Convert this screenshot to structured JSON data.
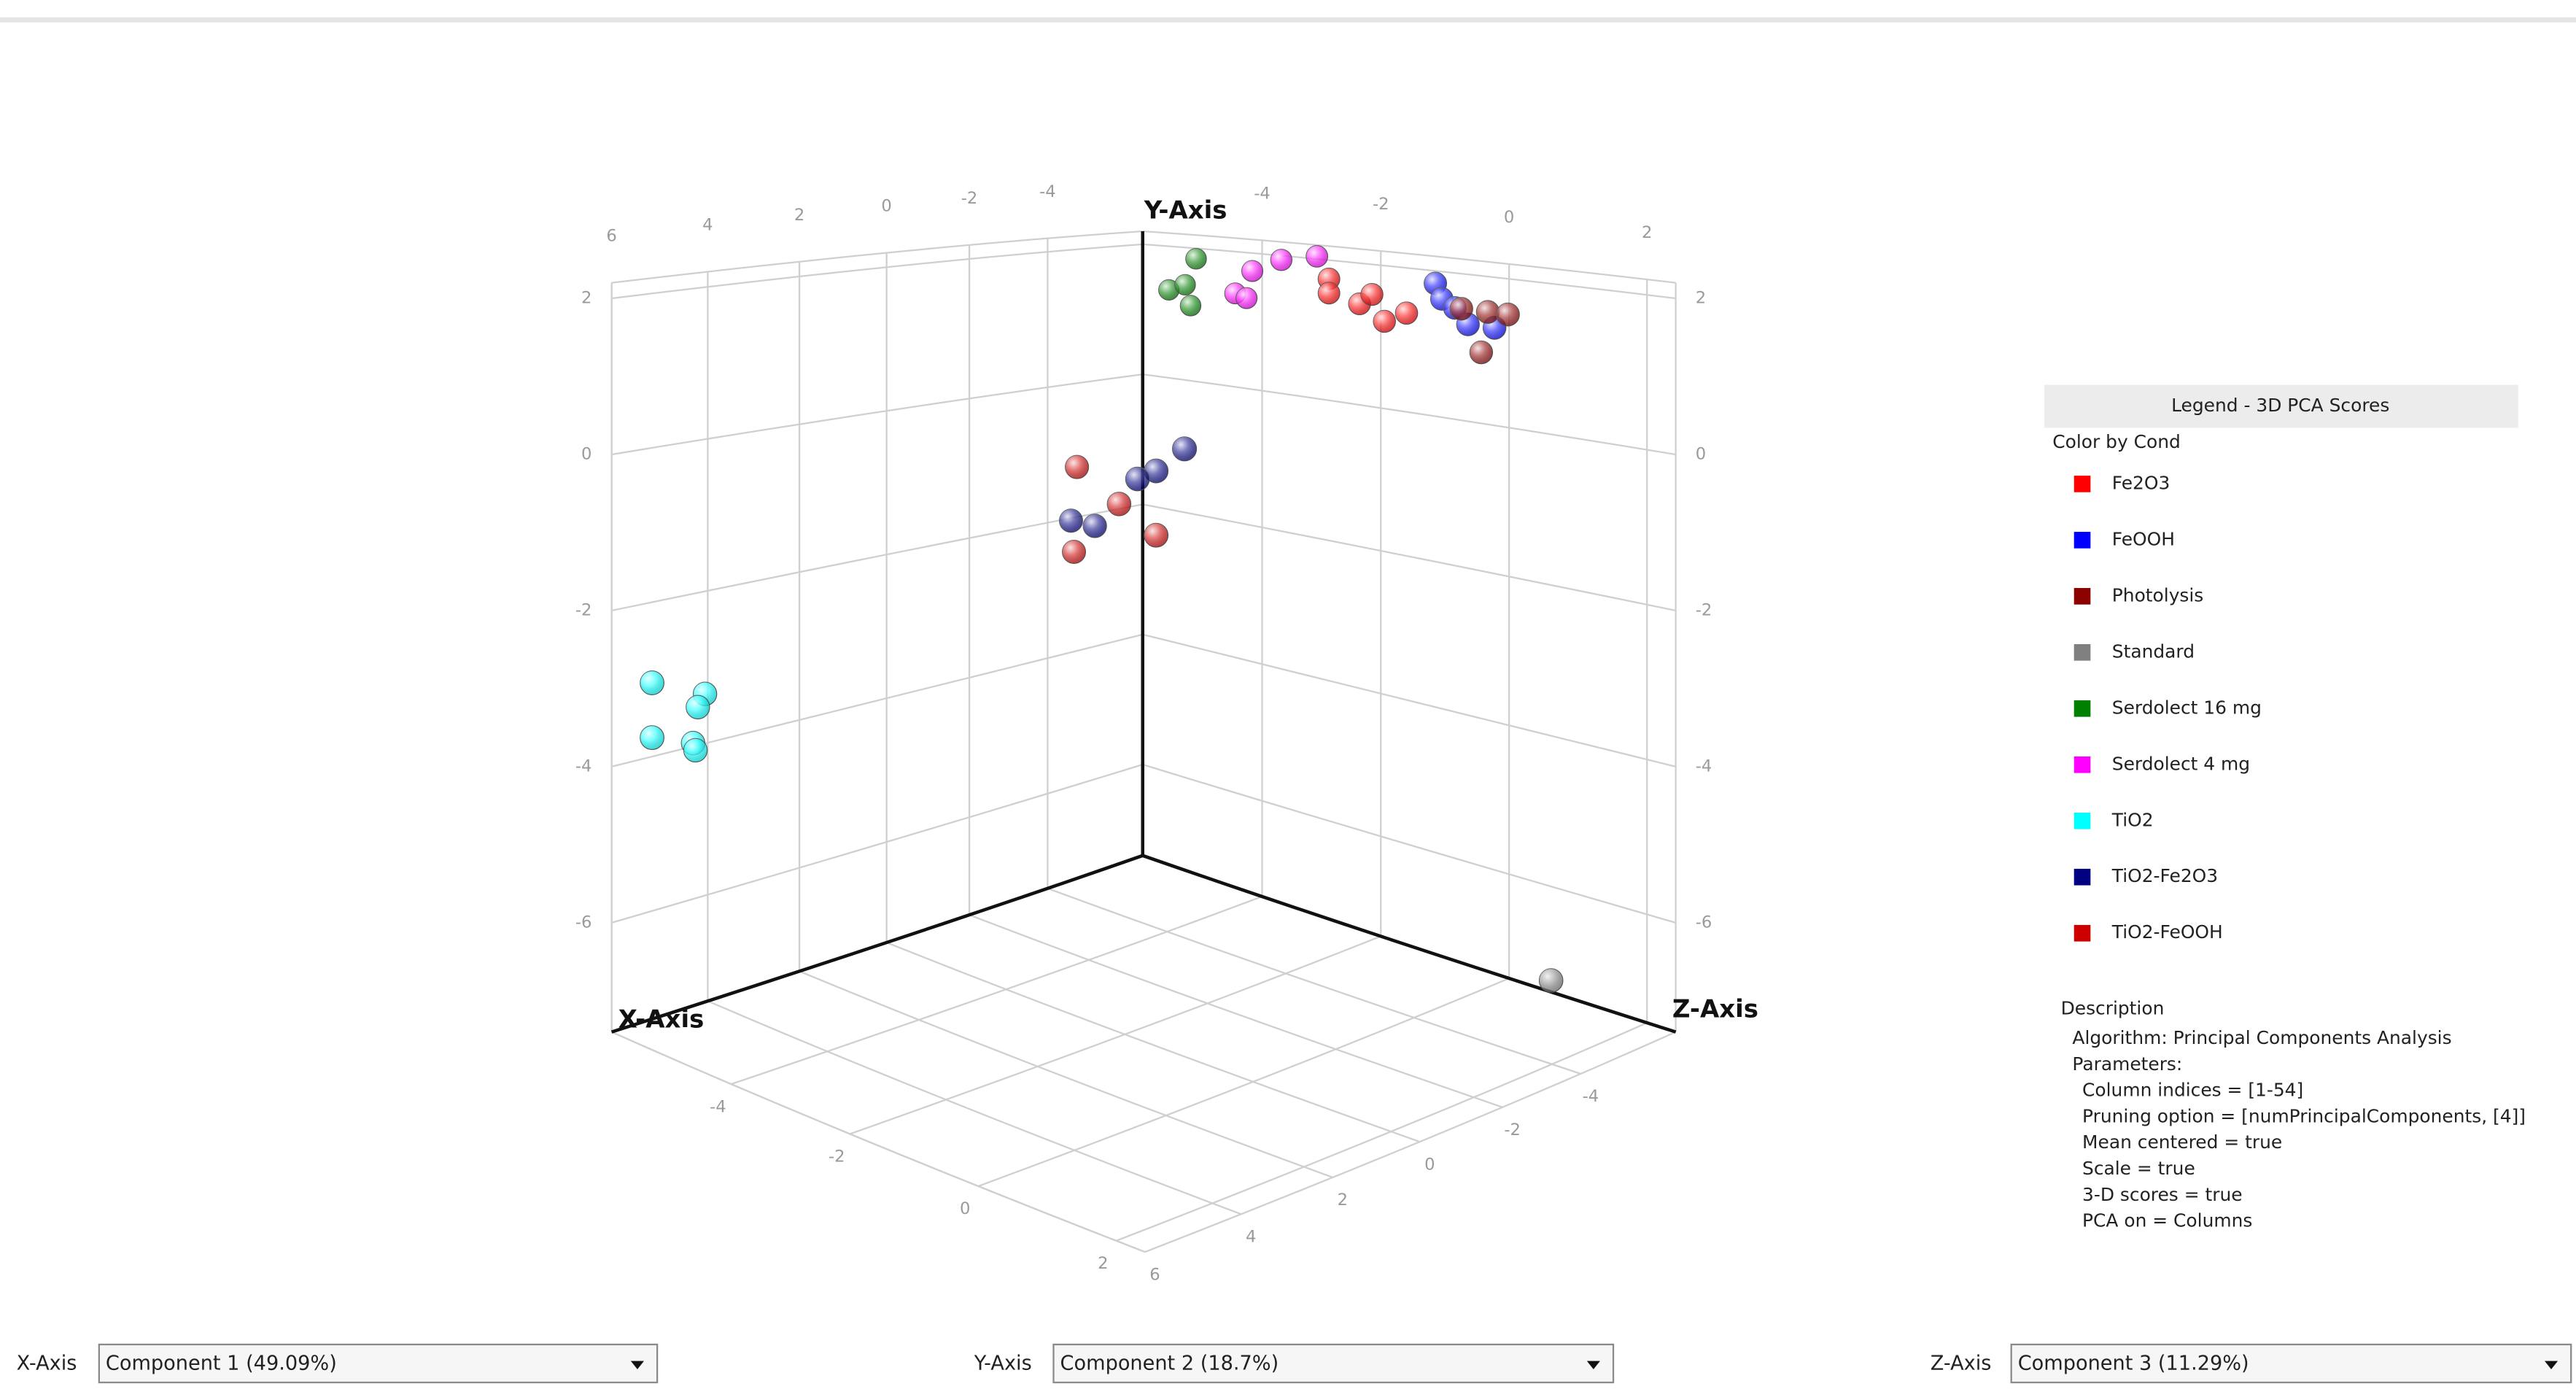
{
  "chart_data": {
    "type": "scatter3d",
    "x_axis_label": "X-Axis",
    "y_axis_label": "Y-Axis",
    "z_axis_label": "Z-Axis",
    "xlim": [
      -6.6,
      6
    ],
    "ylim": [
      -7.4,
      2.2
    ],
    "zlim": [
      -6.2,
      2.4
    ],
    "xticks": [
      -4,
      -2,
      0,
      2,
      4,
      6
    ],
    "yticks": [
      -6,
      -4,
      -2,
      0,
      2
    ],
    "zticks": [
      -4,
      -2,
      0,
      2
    ],
    "grid": true,
    "series": [
      {
        "name": "Fe2O3",
        "color": "#ff0000",
        "x": [
          -6.0,
          -6.0,
          -6.0,
          -6.0,
          -6.0,
          -6.0
        ],
        "y": [
          1.8,
          1.6,
          1.5,
          1.65,
          1.45,
          1.3
        ],
        "z": [
          -2.5,
          -2.5,
          -2.0,
          -1.8,
          -1.25,
          -1.6
        ]
      },
      {
        "name": "FeOOH",
        "color": "#0000ff",
        "x": [
          -6.0,
          -6.0,
          -6.0,
          -6.0,
          -6.0
        ],
        "y": [
          1.9,
          1.7,
          1.6,
          1.4,
          1.4
        ],
        "z": [
          -0.8,
          -0.7,
          -0.5,
          -0.3,
          0.1
        ]
      },
      {
        "name": "Photolysis",
        "color": "#8b0000",
        "x": [
          -6.0,
          -6.0,
          -6.0,
          -6.0
        ],
        "y": [
          1.6,
          1.6,
          1.6,
          1.05
        ],
        "z": [
          -0.4,
          0.0,
          0.3,
          -0.1
        ]
      },
      {
        "name": "Standard",
        "color": "#808080",
        "x": [
          -5.3
        ],
        "y": [
          -6.8
        ],
        "z": [
          1.3
        ]
      },
      {
        "name": "Serdolect 16 mg",
        "color": "#008000",
        "x": [
          -6.0,
          -6.0,
          -6.0,
          -6.0
        ],
        "y": [
          1.9,
          1.4,
          1.5,
          1.2
        ],
        "z": [
          -4.8,
          -5.3,
          -5.0,
          -4.9
        ]
      },
      {
        "name": "Serdolect 4 mg",
        "color": "#ff00ff",
        "x": [
          -6.0,
          -6.0,
          -6.0,
          -6.0,
          -6.0
        ],
        "y": [
          1.8,
          2.0,
          2.1,
          1.45,
          1.4
        ],
        "z": [
          -3.8,
          -3.3,
          -2.7,
          -4.1,
          -3.9
        ]
      },
      {
        "name": "TiO2",
        "color": "#00ffff",
        "x": [
          5.6,
          4.5,
          4.65,
          5.6,
          4.75,
          4.7
        ],
        "y": [
          -2.9,
          -3.2,
          -3.35,
          -3.6,
          -3.8,
          -3.9
        ],
        "z": [
          -5.8,
          -5.8,
          -5.8,
          -5.8,
          -5.8,
          -5.8
        ]
      },
      {
        "name": "TiO2-Fe2O3",
        "color": "#000080",
        "x": [
          -0.3,
          -0.3,
          -0.3,
          -0.3,
          -0.3
        ],
        "y": [
          0.17,
          -0.18,
          -0.33,
          -1.05,
          -1.05
        ],
        "z": [
          -1.25,
          -1.7,
          -2.0,
          -2.7,
          -3.1
        ]
      },
      {
        "name": "TiO2-FeOOH",
        "color": "#cc0000",
        "x": [
          -0.3,
          -0.3,
          -0.3,
          -0.3
        ],
        "y": [
          -0.33,
          -0.7,
          -1.0,
          -1.45
        ],
        "z": [
          -3.0,
          -2.3,
          -1.7,
          -3.05
        ]
      }
    ]
  },
  "legend": {
    "title": "Legend - 3D PCA Scores",
    "subtitle": "Color by Cond"
  },
  "description": {
    "title": "Description",
    "lines": [
      "Algorithm: Principal Components Analysis",
      "Parameters:",
      "Column indices = [1-54]",
      "Pruning option = [numPrincipalComponents, [4]]",
      "Mean centered = true",
      "Scale = true",
      "3-D scores = true",
      "PCA on = Columns"
    ]
  },
  "controls": [
    {
      "label": "X-Axis",
      "value": "Component 1 (49.09%)"
    },
    {
      "label": "Y-Axis",
      "value": "Component 2 (18.7%)"
    },
    {
      "label": "Z-Axis",
      "value": "Component 3 (11.29%)"
    }
  ]
}
